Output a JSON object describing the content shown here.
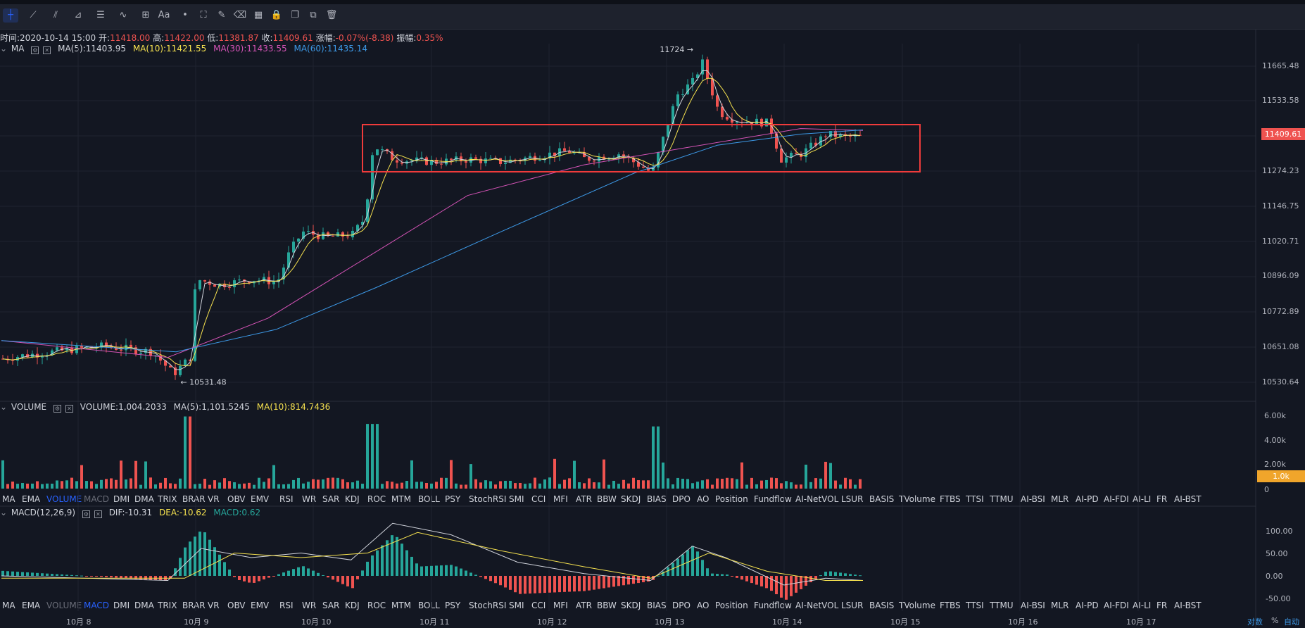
{
  "toolbar": {
    "tools": [
      "crosshair-icon",
      "trend-line-icon",
      "fib-icon",
      "ray-icon",
      "parallel-icon",
      "wave-icon",
      "measure-icon",
      "text-icon",
      "pattern-icon",
      "brush-icon",
      "erase-icon",
      "ruler-icon",
      "lock-icon",
      "copy-icon",
      "screenshot-icon",
      "trash-icon"
    ],
    "text_tool": "Aa"
  },
  "ohlc": {
    "time_label": "时间:",
    "time_value": "2020-10-14 15:00",
    "open_label": "开:",
    "open_value": "11418.00",
    "high_label": "高:",
    "high_value": "11422.00",
    "low_label": "低:",
    "low_value": "11381.87",
    "close_label": "收:",
    "close_value": "11409.61",
    "change_label": "涨幅:",
    "change_value": "-0.07%(-8.38)",
    "amp_label": "振幅:",
    "amp_value": "0.35%"
  },
  "ma_legend": {
    "name": "MA",
    "ma5": "MA(5):11403.95",
    "ma10": "MA(10):11421.55",
    "ma30": "MA(30):11433.55",
    "ma60": "MA(60):11435.14"
  },
  "volume_legend": {
    "name": "VOLUME",
    "vol": "VOLUME:1,004.2033",
    "ma5": "MA(5):1,101.5245",
    "ma10": "MA(10):814.7436"
  },
  "macd_legend": {
    "name": "MACD(12,26,9)",
    "dif": "DIF:-10.31",
    "dea": "DEA:-10.62",
    "macd": "MACD:0.62"
  },
  "indicator_tabs": [
    "MA",
    "EMA",
    "VOLUME",
    "MACD",
    "DMI",
    "DMA",
    "TRIX",
    "BRAR",
    "VR",
    "OBV",
    "EMV",
    "RSI",
    "WR",
    "SAR",
    "KDJ",
    "ROC",
    "MTM",
    "BOLL",
    "PSY",
    "StochRSI",
    "SMI",
    "CCI",
    "MFI",
    "ATR",
    "BBW",
    "SKDJ",
    "BIAS",
    "DPO",
    "AO",
    "Position",
    "Fundflow",
    "AI-NetVOL",
    "LSUR",
    "BASIS",
    "TVolume",
    "FTBS",
    "TTSI",
    "TTMU",
    "AI-BSI",
    "MLR",
    "AI-PD",
    "AI-FDI",
    "AI-LI",
    "FR",
    "AI-BST"
  ],
  "price_axis": [
    "11665.48",
    "11533.58",
    "11274.23",
    "11146.75",
    "11020.71",
    "10896.09",
    "10772.89",
    "10651.08",
    "10530.64"
  ],
  "current_price": "11409.61",
  "volume_axis": [
    "6.00k",
    "4.00k",
    "2.00k",
    "0"
  ],
  "current_volume": "1.0k",
  "macd_axis": [
    "100.00",
    "50.00",
    "0.00",
    "-50.00"
  ],
  "dates": [
    "10月 8",
    "10月 9",
    "10月 10",
    "10月 11",
    "10月 12",
    "10月 13",
    "10月 14",
    "10月 15",
    "10月 16",
    "10月 17"
  ],
  "annotations": {
    "high": "11724",
    "low": "10531.48"
  },
  "bottom_right": {
    "log": "对数",
    "percent": "%",
    "auto": "自动"
  },
  "colors": {
    "up": "#26a69a",
    "down": "#ef5350",
    "ma5": "#d1d4dc",
    "ma10": "#f5e14f",
    "ma30": "#d453b6",
    "ma60": "#3d9ae8",
    "box": "#ef3b3b",
    "accent": "#2962ff"
  },
  "chart_data": {
    "type": "candlestick",
    "x_range": [
      "10月 8",
      "10月 17"
    ],
    "ylim": [
      10530.64,
      11724
    ],
    "price_path": [
      [
        0,
        10615
      ],
      [
        20,
        10625
      ],
      [
        60,
        10640
      ],
      [
        120,
        10660
      ],
      [
        180,
        10640
      ],
      [
        205,
        10560
      ],
      [
        225,
        10620
      ],
      [
        232,
        10900
      ],
      [
        260,
        10880
      ],
      [
        300,
        10900
      ],
      [
        330,
        10890
      ],
      [
        345,
        11000
      ],
      [
        360,
        11070
      ],
      [
        390,
        11050
      ],
      [
        420,
        11060
      ],
      [
        435,
        11120
      ],
      [
        445,
        11380
      ],
      [
        470,
        11330
      ],
      [
        520,
        11320
      ],
      [
        560,
        11330
      ],
      [
        600,
        11320
      ],
      [
        640,
        11340
      ],
      [
        680,
        11360
      ],
      [
        700,
        11330
      ],
      [
        740,
        11350
      ],
      [
        770,
        11300
      ],
      [
        780,
        11280
      ],
      [
        795,
        11420
      ],
      [
        810,
        11560
      ],
      [
        830,
        11610
      ],
      [
        840,
        11680
      ],
      [
        860,
        11500
      ],
      [
        880,
        11470
      ],
      [
        920,
        11460
      ],
      [
        935,
        11330
      ],
      [
        960,
        11350
      ],
      [
        990,
        11420
      ],
      [
        1010,
        11410
      ],
      [
        1035,
        11409
      ]
    ],
    "ma60_path": [
      [
        0,
        10680
      ],
      [
        210,
        10640
      ],
      [
        330,
        10720
      ],
      [
        450,
        10870
      ],
      [
        600,
        11070
      ],
      [
        760,
        11280
      ],
      [
        860,
        11380
      ],
      [
        960,
        11420
      ],
      [
        1035,
        11435
      ]
    ],
    "ma30_path": [
      [
        0,
        10680
      ],
      [
        200,
        10620
      ],
      [
        320,
        10760
      ],
      [
        440,
        10980
      ],
      [
        560,
        11200
      ],
      [
        700,
        11310
      ],
      [
        820,
        11370
      ],
      [
        960,
        11440
      ],
      [
        1035,
        11433
      ]
    ],
    "macd_dif_path": [
      [
        0,
        0
      ],
      [
        200,
        -10
      ],
      [
        240,
        60
      ],
      [
        300,
        40
      ],
      [
        360,
        50
      ],
      [
        420,
        35
      ],
      [
        470,
        115
      ],
      [
        540,
        90
      ],
      [
        620,
        30
      ],
      [
        700,
        5
      ],
      [
        780,
        -10
      ],
      [
        830,
        65
      ],
      [
        870,
        40
      ],
      [
        940,
        -20
      ],
      [
        990,
        -5
      ],
      [
        1035,
        -10
      ]
    ],
    "macd_dea_path": [
      [
        0,
        -5
      ],
      [
        220,
        -5
      ],
      [
        280,
        50
      ],
      [
        360,
        40
      ],
      [
        440,
        50
      ],
      [
        500,
        95
      ],
      [
        600,
        55
      ],
      [
        700,
        20
      ],
      [
        780,
        -5
      ],
      [
        850,
        50
      ],
      [
        920,
        10
      ],
      [
        990,
        -10
      ],
      [
        1035,
        -10
      ]
    ]
  }
}
